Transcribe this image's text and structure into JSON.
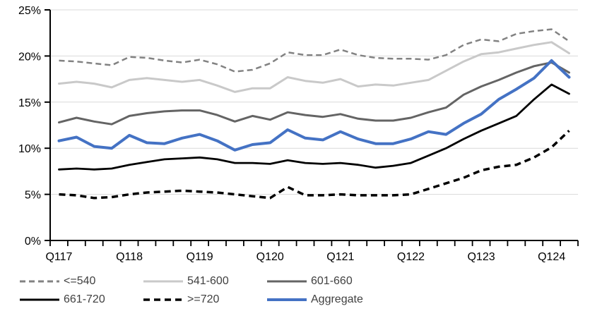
{
  "chart_data": {
    "type": "line",
    "title": "",
    "categories": [
      "Q117",
      "Q217",
      "Q317",
      "Q417",
      "Q118",
      "Q218",
      "Q318",
      "Q418",
      "Q119",
      "Q219",
      "Q319",
      "Q419",
      "Q120",
      "Q220",
      "Q320",
      "Q420",
      "Q121",
      "Q221",
      "Q321",
      "Q421",
      "Q122",
      "Q222",
      "Q322",
      "Q422",
      "Q123",
      "Q223",
      "Q323",
      "Q423",
      "Q124",
      "Q224"
    ],
    "x_axis_labels": [
      "Q117",
      "Q118",
      "Q119",
      "Q120",
      "Q121",
      "Q122",
      "Q123",
      "Q124"
    ],
    "x_label_every": 4,
    "ylim": [
      0,
      25
    ],
    "y_tick_values": [
      0,
      5,
      10,
      15,
      20,
      25
    ],
    "y_tick_labels": [
      "0%",
      "5%",
      "10%",
      "15%",
      "20%",
      "25%"
    ],
    "grid": "horizontal",
    "gridline_color": "#D9D9D9",
    "axis_color": "#000000",
    "legend_position": "bottom",
    "series": [
      {
        "name": "<=540",
        "color": "#828282",
        "style": "dashed",
        "width": 2.5,
        "dash": "8 5",
        "values": [
          19.5,
          19.4,
          19.2,
          19.0,
          19.9,
          19.8,
          19.5,
          19.3,
          19.6,
          19.1,
          18.3,
          18.5,
          19.2,
          20.4,
          20.1,
          20.1,
          20.7,
          20.1,
          19.8,
          19.7,
          19.7,
          19.6,
          20.1,
          21.2,
          21.8,
          21.6,
          22.4,
          22.7,
          22.9,
          21.6
        ]
      },
      {
        "name": "541-600",
        "color": "#C9C9C9",
        "style": "solid",
        "width": 3.0,
        "dash": "",
        "values": [
          17.0,
          17.2,
          17.0,
          16.6,
          17.4,
          17.6,
          17.4,
          17.2,
          17.4,
          16.8,
          16.1,
          16.5,
          16.5,
          17.7,
          17.3,
          17.1,
          17.5,
          16.7,
          16.9,
          16.8,
          17.1,
          17.4,
          18.4,
          19.4,
          20.2,
          20.4,
          20.8,
          21.2,
          21.5,
          20.3
        ]
      },
      {
        "name": "601-660",
        "color": "#646464",
        "style": "solid",
        "width": 3.0,
        "dash": "",
        "values": [
          12.8,
          13.3,
          12.9,
          12.6,
          13.5,
          13.8,
          14.0,
          14.1,
          14.1,
          13.6,
          12.9,
          13.5,
          13.1,
          13.9,
          13.6,
          13.4,
          13.7,
          13.2,
          13.0,
          13.0,
          13.3,
          13.9,
          14.4,
          15.8,
          16.7,
          17.4,
          18.2,
          18.9,
          19.3,
          18.2
        ]
      },
      {
        "name": "661-720",
        "color": "#000000",
        "style": "solid",
        "width": 2.8,
        "dash": "",
        "values": [
          7.7,
          7.8,
          7.7,
          7.8,
          8.2,
          8.5,
          8.8,
          8.9,
          9.0,
          8.8,
          8.4,
          8.4,
          8.3,
          8.7,
          8.4,
          8.3,
          8.4,
          8.2,
          7.9,
          8.1,
          8.4,
          9.2,
          10.0,
          11.0,
          11.9,
          12.7,
          13.5,
          15.3,
          16.9,
          15.9
        ]
      },
      {
        "name": ">=720",
        "color": "#000000",
        "style": "dashed",
        "width": 3.5,
        "dash": "9 6",
        "values": [
          5.0,
          4.9,
          4.6,
          4.7,
          5.0,
          5.2,
          5.3,
          5.4,
          5.3,
          5.2,
          5.0,
          4.8,
          4.6,
          5.8,
          4.9,
          4.9,
          5.0,
          4.9,
          4.9,
          4.9,
          5.0,
          5.6,
          6.2,
          6.8,
          7.6,
          8.0,
          8.2,
          9.0,
          10.1,
          11.9
        ]
      },
      {
        "name": "Aggregate",
        "color": "#4472C4",
        "style": "solid",
        "width": 4.0,
        "dash": "",
        "values": [
          10.8,
          11.2,
          10.2,
          10.0,
          11.4,
          10.6,
          10.5,
          11.1,
          11.5,
          10.8,
          9.8,
          10.4,
          10.6,
          12.0,
          11.1,
          10.9,
          11.8,
          11.0,
          10.5,
          10.5,
          11.0,
          11.8,
          11.5,
          12.7,
          13.7,
          15.3,
          16.4,
          17.6,
          19.5,
          17.7
        ]
      }
    ]
  }
}
